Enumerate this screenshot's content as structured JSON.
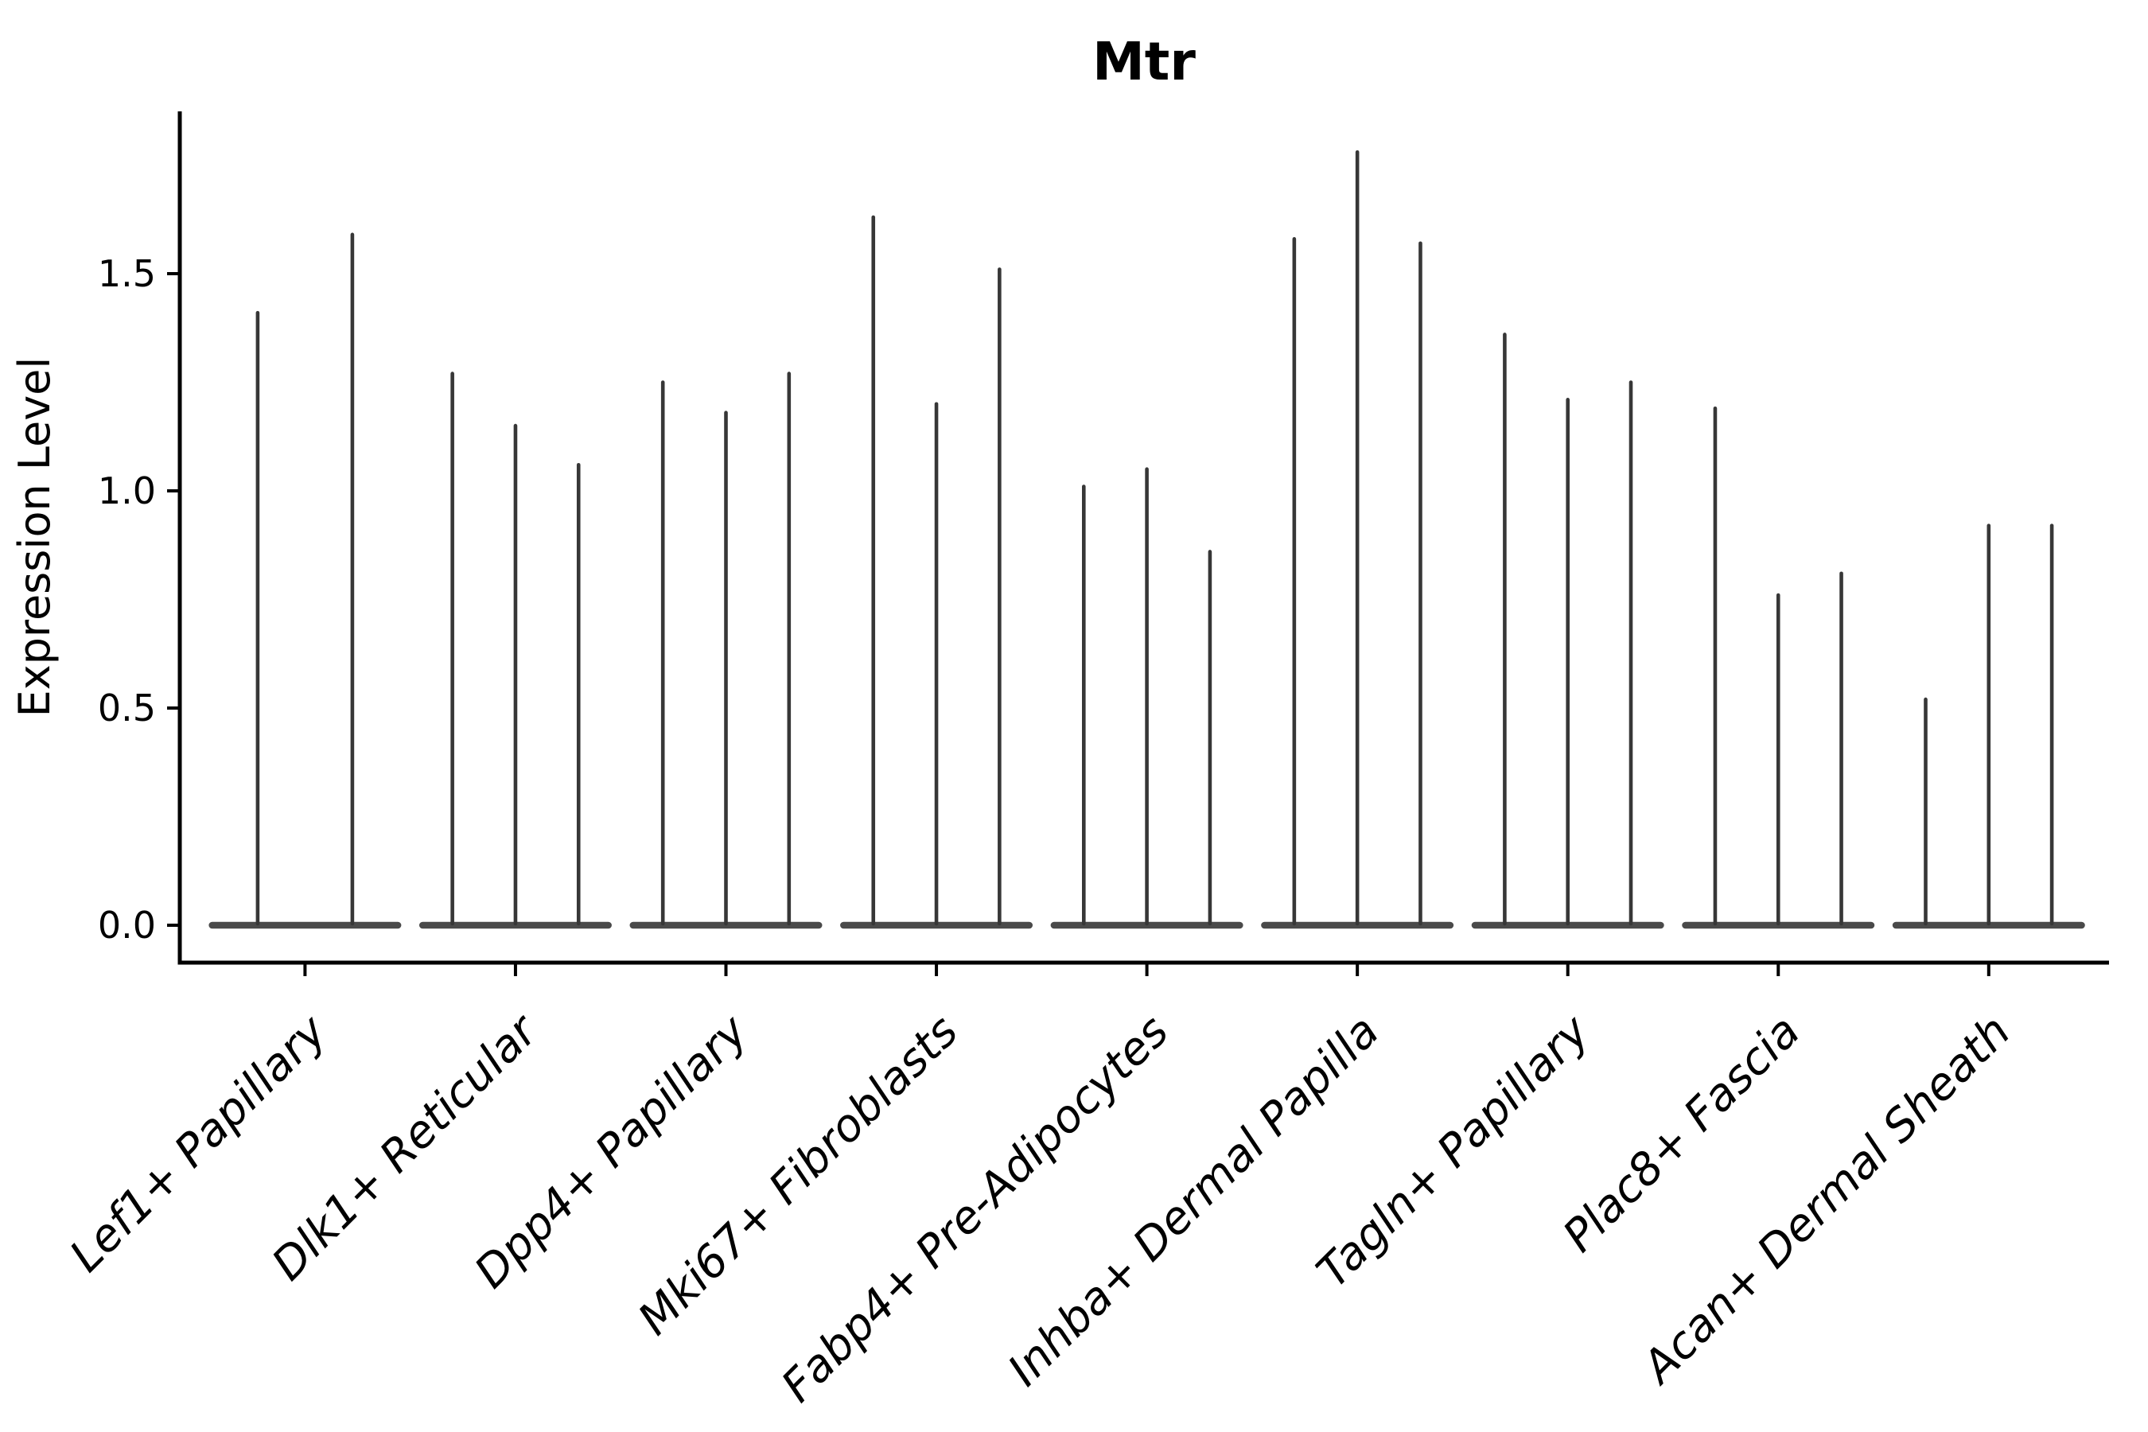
{
  "title": "Mtr",
  "y_axis": {
    "label": "Expression Level",
    "tick_labels": [
      "0.0",
      "0.5",
      "1.0",
      "1.5"
    ]
  },
  "chart_data": {
    "type": "violin",
    "title": "Mtr",
    "xlabel": "",
    "ylabel": "Expression Level",
    "ylim": [
      -0.09,
      1.87
    ],
    "yticks": [
      0.0,
      0.5,
      1.0,
      1.5
    ],
    "grid": false,
    "legend_position": "none",
    "style_note": "Sparse single-cell expression violin plot: each violin collapses to a flat wide base at 0 with one thin vertical spike up to its maximum expression value. Groups of 2-3 violins (samples) per cell-type category.",
    "categories": [
      "Lef1+ Papillary",
      "Dlk1+ Reticular",
      "Dpp4+ Papillary",
      "Mki67+ Fibroblasts",
      "Fabp4+ Pre-Adipocytes",
      "Inhba+ Dermal Papilla",
      "Tagln+ Papillary",
      "Plac8+ Fascia",
      "Acan+ Dermal Sheath"
    ],
    "series": [
      {
        "category": "Lef1+ Papillary",
        "violin_max_values": [
          1.41,
          1.59
        ]
      },
      {
        "category": "Dlk1+ Reticular",
        "violin_max_values": [
          1.27,
          1.15,
          1.06
        ]
      },
      {
        "category": "Dpp4+ Papillary",
        "violin_max_values": [
          1.25,
          1.18,
          1.27
        ]
      },
      {
        "category": "Mki67+ Fibroblasts",
        "violin_max_values": [
          1.63,
          1.2,
          1.51
        ]
      },
      {
        "category": "Fabp4+ Pre-Adipocytes",
        "violin_max_values": [
          1.01,
          1.05,
          0.86
        ]
      },
      {
        "category": "Inhba+ Dermal Papilla",
        "violin_max_values": [
          1.58,
          1.78,
          1.57
        ]
      },
      {
        "category": "Tagln+ Papillary",
        "violin_max_values": [
          1.36,
          1.21,
          1.25
        ]
      },
      {
        "category": "Plac8+ Fascia",
        "violin_max_values": [
          1.19,
          0.76,
          0.81
        ]
      },
      {
        "category": "Acan+ Dermal Sheath",
        "violin_max_values": [
          0.52,
          0.92,
          0.92
        ]
      }
    ],
    "colors": {
      "violin_spike": "#373737",
      "violin_body": "#4a4a4a",
      "axis": "#000000",
      "text": "#000000",
      "background": "#ffffff"
    }
  }
}
